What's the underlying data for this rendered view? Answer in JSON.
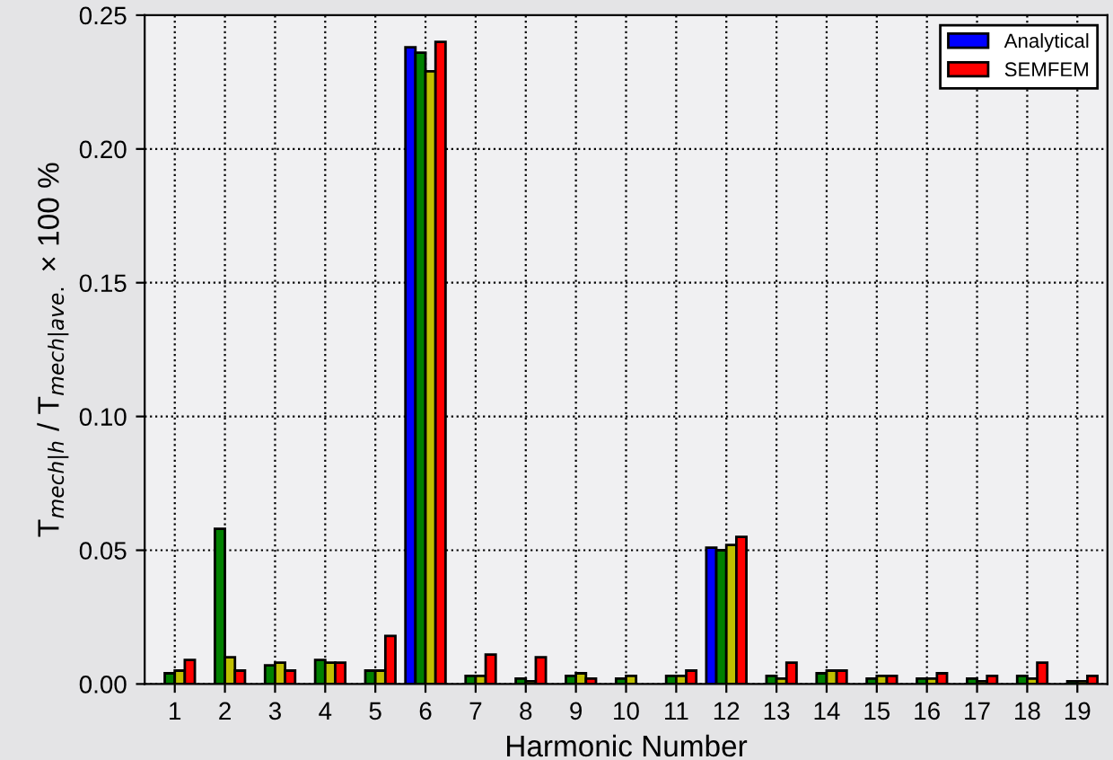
{
  "chart_data": {
    "type": "bar",
    "xlabel": "Harmonic Number",
    "ylabel": "T$_{mech|h}$ / T$_{mech|ave.}$ × 100 %",
    "categories": [
      "1",
      "2",
      "3",
      "4",
      "5",
      "6",
      "7",
      "8",
      "9",
      "10",
      "11",
      "12",
      "13",
      "14",
      "15",
      "16",
      "17",
      "18",
      "19"
    ],
    "series": [
      {
        "name": "Analytical",
        "color": "#0000ff",
        "values": [
          null,
          null,
          null,
          null,
          null,
          0.238,
          null,
          null,
          null,
          null,
          null,
          0.051,
          null,
          null,
          null,
          null,
          null,
          null,
          null
        ]
      },
      {
        "color": "#008000",
        "values": [
          0.004,
          0.058,
          0.007,
          0.009,
          0.005,
          0.236,
          0.003,
          0.002,
          0.003,
          0.002,
          0.003,
          0.05,
          0.003,
          0.004,
          0.002,
          0.002,
          0.002,
          0.003,
          0.001
        ]
      },
      {
        "color": "#bfbf00",
        "values": [
          0.005,
          0.01,
          0.008,
          0.008,
          0.005,
          0.229,
          0.003,
          0.001,
          0.004,
          0.003,
          0.003,
          0.052,
          0.002,
          0.005,
          0.003,
          0.002,
          0.001,
          0.002,
          0.001
        ]
      },
      {
        "name": "SEMFEM",
        "color": "#ff0000",
        "values": [
          0.009,
          0.005,
          0.005,
          0.008,
          0.018,
          0.24,
          0.011,
          0.01,
          0.002,
          null,
          0.005,
          0.055,
          0.008,
          0.005,
          0.003,
          0.004,
          0.003,
          0.008,
          0.003
        ]
      }
    ],
    "ylim": [
      0,
      0.25
    ],
    "yticks": [
      {
        "value": 0,
        "label": "0.00"
      },
      {
        "value": 0.05,
        "label": "0.05"
      },
      {
        "value": 0.1,
        "label": "0.10"
      },
      {
        "value": 0.15,
        "label": "0.15"
      },
      {
        "value": 0.2,
        "label": "0.20"
      },
      {
        "value": 0.25,
        "label": "0.25"
      }
    ],
    "grid": true,
    "legend": "top right"
  }
}
